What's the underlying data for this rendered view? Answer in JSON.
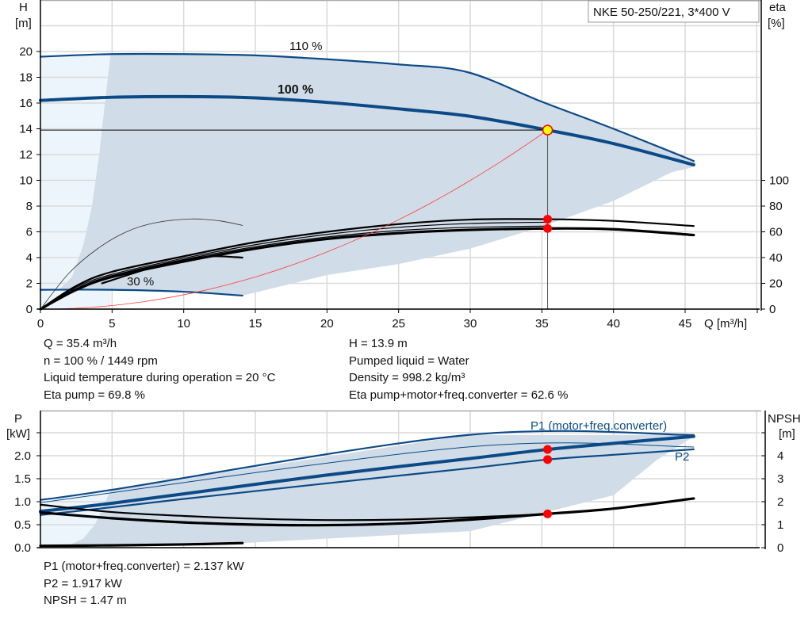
{
  "legend_box": "NKE 50-250/221, 3*400 V",
  "colors": {
    "curve_blue": "#0b4a86",
    "region_fill": "#d0dce7",
    "region_light": "#edf5fc",
    "system_curve": "#ff3b3b",
    "duty_marker": "#ffff00",
    "point_marker": "#ff0000",
    "grid": "#d9d9d9"
  },
  "chart_data": [
    {
      "type": "line",
      "title": "",
      "xlabel": "Q [m³/h]",
      "ylabel": [
        "H",
        "[m]"
      ],
      "y2label": [
        "eta",
        "[%]"
      ],
      "xlim": [
        0,
        50
      ],
      "ylim": [
        0,
        24
      ],
      "y2lim": [
        0,
        120
      ],
      "grid": true,
      "x_ticks": [
        "0",
        "5",
        "10",
        "15",
        "20",
        "25",
        "30",
        "35",
        "40",
        "45"
      ],
      "y_ticks": [
        "0",
        "2",
        "4",
        "6",
        "8",
        "10",
        "12",
        "14",
        "16",
        "18",
        "20"
      ],
      "y2_ticks": [
        "0",
        "20",
        "40",
        "60",
        "80",
        "100"
      ],
      "operating_region": [
        [
          4.9,
          19.8
        ],
        [
          10,
          19.8
        ],
        [
          15,
          19.7
        ],
        [
          20,
          19.4
        ],
        [
          25,
          19.0
        ],
        [
          29.8,
          18.4
        ],
        [
          35,
          16.1
        ],
        [
          40,
          14.0
        ],
        [
          45.6,
          11.5
        ],
        [
          44,
          10.6
        ],
        [
          40,
          8.4
        ],
        [
          35,
          6.4
        ],
        [
          30,
          4.7
        ],
        [
          25,
          3.5
        ],
        [
          20,
          2.65
        ],
        [
          14.1,
          1.05
        ],
        [
          10,
          1.35
        ],
        [
          5,
          1.5
        ],
        [
          1.3,
          1.5
        ],
        [
          2.2,
          2.5
        ],
        [
          3.0,
          5
        ],
        [
          3.6,
          8
        ],
        [
          4.1,
          12
        ],
        [
          4.5,
          16
        ],
        [
          4.9,
          19.8
        ]
      ],
      "series": [
        {
          "name": "110 %",
          "axis": "H",
          "line": "medium",
          "points": [
            [
              0,
              19.6
            ],
            [
              5,
              19.8
            ],
            [
              10,
              19.8
            ],
            [
              15,
              19.7
            ],
            [
              20,
              19.4
            ],
            [
              25,
              19.0
            ],
            [
              29.8,
              18.4
            ],
            [
              35,
              16.1
            ],
            [
              40,
              14.0
            ],
            [
              45.6,
              11.5
            ]
          ]
        },
        {
          "name": "100 %",
          "axis": "H",
          "line": "thick",
          "points": [
            [
              0,
              16.2
            ],
            [
              5,
              16.45
            ],
            [
              10,
              16.5
            ],
            [
              15,
              16.4
            ],
            [
              20,
              16.05
            ],
            [
              25,
              15.55
            ],
            [
              30,
              14.97
            ],
            [
              35.4,
              13.9
            ],
            [
              40,
              12.85
            ],
            [
              45.6,
              11.2
            ]
          ]
        },
        {
          "name": "30 %",
          "axis": "H",
          "line": "medium",
          "points": [
            [
              0,
              1.5
            ],
            [
              5,
              1.5
            ],
            [
              10,
              1.35
            ],
            [
              14.1,
              1.05
            ]
          ]
        },
        {
          "name": "",
          "axis": "eta",
          "line": "black-medium",
          "points": [
            [
              0,
              0
            ],
            [
              2.5,
              18
            ],
            [
              5,
              29
            ],
            [
              10,
              41
            ],
            [
              15,
              52
            ],
            [
              20,
              60
            ],
            [
              25,
              66
            ],
            [
              30,
              69.5
            ],
            [
              35.4,
              69.8
            ],
            [
              40,
              68.5
            ],
            [
              45.6,
              64.5
            ]
          ]
        },
        {
          "name": "",
          "axis": "eta",
          "line": "black-thick",
          "points": [
            [
              0,
              0
            ],
            [
              2.5,
              15
            ],
            [
              5,
              25
            ],
            [
              10,
              37
            ],
            [
              15,
              47
            ],
            [
              20,
              54.5
            ],
            [
              25,
              59
            ],
            [
              30,
              61.5
            ],
            [
              35.4,
              62.6
            ],
            [
              40,
              62
            ],
            [
              45.6,
              57.5
            ]
          ]
        },
        {
          "name": "",
          "axis": "eta",
          "line": "black-thin",
          "points": [
            [
              0,
              0
            ],
            [
              2.5,
              17
            ],
            [
              5,
              27
            ],
            [
              10,
              39.5
            ],
            [
              15,
              50
            ],
            [
              20,
              58
            ],
            [
              25,
              63.5
            ],
            [
              30,
              66.5
            ],
            [
              35.4,
              67.5
            ]
          ]
        },
        {
          "name": "",
          "axis": "eta",
          "line": "black-thin",
          "points": [
            [
              0,
              0
            ],
            [
              2.5,
              16
            ],
            [
              5,
              26
            ],
            [
              10,
              38.5
            ],
            [
              15,
              48.5
            ],
            [
              20,
              56
            ],
            [
              25,
              61
            ],
            [
              30,
              63.5
            ],
            [
              35.4,
              64.5
            ]
          ]
        },
        {
          "name": "",
          "axis": "eta",
          "line": "black-medium",
          "points": [
            [
              4.3,
              20
            ],
            [
              8,
              33
            ],
            [
              10,
              38
            ],
            [
              12,
              41
            ],
            [
              14.1,
              40
            ]
          ]
        },
        {
          "name": "",
          "axis": "eta",
          "line": "black-hair",
          "points": [
            [
              0,
              0
            ],
            [
              2,
              28
            ],
            [
              4,
              47
            ],
            [
              6,
              60
            ],
            [
              8,
              67
            ],
            [
              10.5,
              70
            ],
            [
              12.5,
              68.5
            ],
            [
              14.1,
              65
            ]
          ]
        }
      ],
      "system_curve": {
        "h_at_duty": 13.9,
        "q_at_duty": 35.4
      },
      "duty_point": {
        "Q": 35.4,
        "H": 13.9
      },
      "eta_points": [
        69.8,
        62.6
      ],
      "labels": {
        "s110": "110 %",
        "s100": "100 %",
        "s30": "30 %"
      }
    },
    {
      "type": "line",
      "title": "",
      "ylabel": [
        "P",
        "[kW]"
      ],
      "y2label": [
        "NPSH",
        "[m]"
      ],
      "xlim": [
        0,
        50
      ],
      "ylim": [
        0,
        3.0
      ],
      "y2lim": [
        0,
        6
      ],
      "grid": true,
      "y_ticks": [
        "0.0",
        "0.5",
        "1.0",
        "1.5",
        "2.0"
      ],
      "y2_ticks": [
        "0",
        "1",
        "2",
        "3",
        "4",
        ""
      ],
      "operating_region": [
        [
          4.9,
          1.26
        ],
        [
          29.8,
          2.45
        ],
        [
          45.6,
          2.45
        ],
        [
          45.6,
          2.42
        ],
        [
          43,
          1.9
        ],
        [
          40,
          1.14
        ],
        [
          35,
          0.75
        ],
        [
          30,
          0.36
        ],
        [
          25,
          0.28
        ],
        [
          14.1,
          0.1
        ],
        [
          5,
          0.05
        ],
        [
          2,
          0.05
        ],
        [
          3,
          0.2
        ],
        [
          3.8,
          0.5
        ],
        [
          4.4,
          0.9
        ],
        [
          4.9,
          1.26
        ]
      ],
      "series": [
        {
          "name": "",
          "axis": "P",
          "line": "medium",
          "points": [
            [
              0,
              1.04
            ],
            [
              5,
              1.26
            ],
            [
              29.8,
              2.45
            ],
            [
              45.6,
              2.45
            ]
          ]
        },
        {
          "name": "",
          "axis": "P",
          "line": "thin-blue",
          "points": [
            [
              0,
              0.98
            ],
            [
              29.8,
              2.19
            ],
            [
              45.6,
              2.19
            ]
          ]
        },
        {
          "name": "P1 (motor+freq.converter)",
          "axis": "P",
          "line": "thick",
          "points": [
            [
              0,
              0.79
            ],
            [
              4.3,
              0.94
            ],
            [
              10,
              1.17
            ],
            [
              20,
              1.58
            ],
            [
              30,
              1.94
            ],
            [
              35.4,
              2.137
            ],
            [
              40,
              2.27
            ],
            [
              45.6,
              2.42
            ]
          ]
        },
        {
          "name": "P2",
          "axis": "P",
          "line": "medium",
          "points": [
            [
              0,
              0.71
            ],
            [
              5,
              0.88
            ],
            [
              10,
              1.06
            ],
            [
              20,
              1.4
            ],
            [
              30,
              1.73
            ],
            [
              35.4,
              1.917
            ],
            [
              40,
              2.02
            ],
            [
              45.6,
              2.14
            ]
          ]
        },
        {
          "name": "",
          "axis": "NPSH",
          "line": "black-medium",
          "points": [
            [
              0,
              1.87
            ],
            [
              5,
              1.55
            ],
            [
              10,
              1.38
            ],
            [
              15,
              1.26
            ],
            [
              20,
              1.2
            ],
            [
              25,
              1.22
            ],
            [
              30,
              1.32
            ],
            [
              35.4,
              1.47
            ],
            [
              40,
              1.7
            ],
            [
              45.6,
              2.14
            ]
          ]
        },
        {
          "name": "",
          "axis": "NPSH",
          "line": "black-thick",
          "points": [
            [
              0,
              1.53
            ],
            [
              5,
              1.28
            ],
            [
              10,
              1.1
            ],
            [
              15,
              1.0
            ],
            [
              20,
              0.98
            ],
            [
              25,
              1.05
            ],
            [
              30,
              1.22
            ],
            [
              35.4,
              1.47
            ],
            [
              40,
              1.7
            ],
            [
              45.6,
              2.14
            ]
          ]
        },
        {
          "name": "",
          "axis": "P",
          "line": "black-thick",
          "points": [
            [
              0,
              0.04
            ],
            [
              5,
              0.05
            ],
            [
              10,
              0.07
            ],
            [
              14.1,
              0.1
            ]
          ]
        }
      ],
      "duty_points": {
        "P1": 2.137,
        "P2": 1.917,
        "NPSH": 1.47,
        "Q": 35.4
      },
      "labels": {
        "p1": "P1 (motor+freq.converter)",
        "p2": "P2"
      }
    }
  ],
  "info_top_left": [
    "Q = 35.4 m³/h",
    "n = 100 % / 1449 rpm",
    "Liquid temperature during operation = 20 °C",
    "Eta pump = 69.8 %"
  ],
  "info_top_right": [
    "H = 13.9 m",
    "Pumped liquid = Water",
    "Density = 998.2 kg/m³",
    "Eta pump+motor+freq.converter = 62.6 %"
  ],
  "info_bottom": [
    "P1 (motor+freq.converter) = 2.137 kW",
    "P2 = 1.917 kW",
    "NPSH = 1.47 m"
  ]
}
